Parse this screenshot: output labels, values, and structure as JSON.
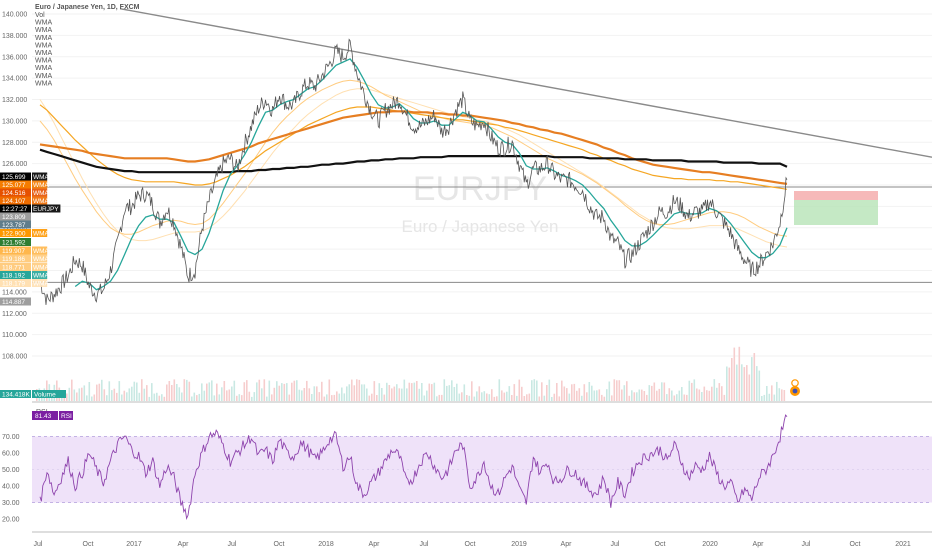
{
  "chart_data": {
    "type": "line",
    "title": "Euro / Japanese Yen, 1D, FXCM",
    "watermark_symbol": "EURJPY",
    "watermark_name": "Euro / Japanese Yen",
    "indicator_labels": [
      "Vol",
      "WMA",
      "WMA",
      "WMA",
      "WMA",
      "WMA",
      "WMA",
      "WMA",
      "WMA",
      "WMA"
    ],
    "y_ticks": [
      "140.000",
      "138.000",
      "136.000",
      "134.000",
      "132.000",
      "130.000",
      "128.000",
      "126.000",
      "124.000",
      "122.000",
      "120.000",
      "118.000",
      "116.000",
      "114.000",
      "112.000",
      "110.000",
      "108.000"
    ],
    "x_ticks": [
      "Jul",
      "Oct",
      "2017",
      "Apr",
      "Jul",
      "Oct",
      "2018",
      "Apr",
      "Jul",
      "Oct",
      "2019",
      "Apr",
      "Jul",
      "Oct",
      "2020",
      "Apr",
      "Jul",
      "Oct",
      "2021"
    ],
    "price_tags": [
      {
        "value": "125.699",
        "label": "WMA",
        "color": "#000000"
      },
      {
        "value": "125.077",
        "label": "WMA",
        "color": "#f57c00"
      },
      {
        "value": "124.516",
        "label": "WMA",
        "color": "#e65100"
      },
      {
        "value": "124.107",
        "label": "WMA",
        "color": "#ef6c00"
      },
      {
        "value": "12:27:27",
        "label": "EURJPY",
        "color": "#000000"
      },
      {
        "value": "123.809",
        "label": "",
        "color": "#9e9e9e"
      },
      {
        "value": "123.787",
        "label": "",
        "color": "#607d8b"
      },
      {
        "value": "122.900",
        "label": "WMA",
        "color": "#ff9800"
      },
      {
        "value": "121.592",
        "label": "",
        "color": "#2e7d32"
      },
      {
        "value": "119.907",
        "label": "WMA",
        "color": "#ffb74d"
      },
      {
        "value": "119.186",
        "label": "WMA",
        "color": "#ffcc80"
      },
      {
        "value": "118.771",
        "label": "WMA",
        "color": "#ffcc80"
      },
      {
        "value": "118.192",
        "label": "WMA",
        "color": "#26a69a"
      },
      {
        "value": "118.179",
        "label": "WMA",
        "color": "#ffe0b2"
      },
      {
        "value": "114.887",
        "label": "",
        "color": "#9e9e9e"
      }
    ],
    "volume_tag": {
      "value": "134.418K",
      "label": "Volume",
      "color": "#26a69a"
    },
    "rsi": {
      "value": "81.43",
      "label": "RSI",
      "y_ticks": [
        "70.00",
        "60.00",
        "50.00",
        "40.00",
        "30.00",
        "20.00"
      ],
      "band": [
        30,
        70
      ]
    },
    "levels": {
      "horizontal_1": 123.809,
      "horizontal_2": 114.887
    },
    "trendline": {
      "start": 140.5,
      "end": 126.6
    },
    "series": [
      {
        "type": "price",
        "values": [
          115.0,
          113.2,
          113.8,
          114.6,
          115.5,
          117.0,
          116.5,
          114.5,
          113.8,
          114.2,
          116.0,
          118.5,
          121.8,
          122.0,
          123.0,
          123.2,
          122.2,
          120.5,
          121.8,
          120.5,
          118.2,
          115.5,
          116.0,
          120.0,
          122.5,
          124.5,
          126.0,
          126.5,
          125.5,
          127.8,
          129.5,
          131.2,
          132.0,
          131.0,
          132.5,
          131.5,
          131.5,
          132.8,
          133.5,
          133.2,
          134.2,
          135.2,
          136.5,
          136.0,
          137.0,
          134.5,
          132.5,
          131.0,
          130.0,
          131.0,
          131.5,
          132.0,
          130.5,
          129.5,
          129.5,
          130.0,
          130.5,
          129.0,
          129.5,
          131.0,
          132.0,
          130.0,
          129.5,
          130.0,
          128.5,
          127.5,
          127.5,
          128.0,
          126.0,
          124.0,
          125.5,
          125.5,
          126.0,
          125.0,
          124.5,
          124.5,
          124.0,
          123.5,
          122.0,
          121.0,
          121.0,
          119.0,
          118.5,
          117.0,
          117.5,
          118.5,
          119.5,
          120.5,
          121.5,
          121.5,
          122.5,
          122.0,
          121.0,
          121.5,
          121.5,
          122.5,
          121.5,
          120.5,
          119.5,
          118.0,
          117.0,
          116.0,
          116.5,
          117.5,
          118.5,
          120.5,
          124.5
        ]
      },
      {
        "type": "wma_teal",
        "values": [
          null,
          null,
          null,
          null,
          null,
          114.5,
          115.0,
          114.8,
          114.2,
          114.5,
          115.0,
          116.0,
          117.5,
          119.0,
          120.2,
          121.0,
          121.2,
          120.8,
          120.8,
          120.5,
          119.2,
          117.8,
          117.5,
          118.0,
          119.5,
          121.5,
          123.5,
          125.0,
          125.8,
          126.8,
          128.0,
          129.5,
          130.8,
          131.0,
          131.5,
          131.8,
          132.0,
          132.5,
          133.0,
          133.2,
          133.8,
          134.5,
          135.2,
          135.5,
          135.8,
          135.0,
          133.8,
          132.5,
          131.5,
          131.2,
          131.3,
          131.6,
          131.0,
          130.2,
          129.8,
          129.8,
          130.0,
          129.6,
          129.6,
          130.2,
          130.8,
          130.5,
          130.0,
          129.9,
          129.3,
          128.5,
          128.0,
          127.8,
          127.0,
          125.8,
          125.5,
          125.5,
          125.6,
          125.3,
          124.9,
          124.7,
          124.4,
          124.0,
          123.3,
          122.5,
          121.8,
          120.7,
          119.8,
          118.8,
          118.3,
          118.3,
          118.7,
          119.3,
          120.0,
          120.6,
          121.3,
          121.5,
          121.3,
          121.3,
          121.4,
          121.8,
          121.6,
          121.1,
          120.4,
          119.5,
          118.6,
          117.7,
          117.2,
          117.2,
          117.6,
          118.4,
          120.0
        ]
      },
      {
        "type": "wma_orange_long",
        "values": [
          127.8,
          127.7,
          127.6,
          127.5,
          127.4,
          127.3,
          127.2,
          127.0,
          126.9,
          126.8,
          126.7,
          126.6,
          126.5,
          126.5,
          126.5,
          126.5,
          126.5,
          126.5,
          126.5,
          126.4,
          126.3,
          126.2,
          126.2,
          126.3,
          126.4,
          126.6,
          126.8,
          127.0,
          127.2,
          127.4,
          127.6,
          127.9,
          128.1,
          128.3,
          128.5,
          128.7,
          128.9,
          129.1,
          129.3,
          129.5,
          129.7,
          129.9,
          130.1,
          130.3,
          130.4,
          130.5,
          130.6,
          130.7,
          130.8,
          130.8,
          130.9,
          130.9,
          130.9,
          130.8,
          130.8,
          130.8,
          130.7,
          130.7,
          130.6,
          130.6,
          130.5,
          130.5,
          130.4,
          130.3,
          130.2,
          130.1,
          130.0,
          129.8,
          129.7,
          129.5,
          129.4,
          129.2,
          129.1,
          128.9,
          128.8,
          128.6,
          128.4,
          128.2,
          128.0,
          127.8,
          127.5,
          127.3,
          127.0,
          126.8,
          126.5,
          126.3,
          126.1,
          125.9,
          125.8,
          125.7,
          125.6,
          125.5,
          125.4,
          125.3,
          125.2,
          125.2,
          125.1,
          125.0,
          124.9,
          124.8,
          124.7,
          124.6,
          124.5,
          124.4,
          124.3,
          124.2,
          124.1
        ]
      },
      {
        "type": "wma_black",
        "values": [
          127.3,
          127.1,
          126.9,
          126.7,
          126.5,
          126.3,
          126.1,
          125.9,
          125.7,
          125.6,
          125.5,
          125.4,
          125.3,
          125.3,
          125.2,
          125.2,
          125.2,
          125.2,
          125.2,
          125.2,
          125.2,
          125.2,
          125.2,
          125.2,
          125.2,
          125.2,
          125.2,
          125.2,
          125.3,
          125.3,
          125.3,
          125.4,
          125.4,
          125.5,
          125.5,
          125.6,
          125.6,
          125.7,
          125.7,
          125.8,
          125.9,
          125.9,
          126.0,
          126.0,
          126.1,
          126.2,
          126.2,
          126.3,
          126.3,
          126.4,
          126.4,
          126.5,
          126.5,
          126.5,
          126.6,
          126.6,
          126.6,
          126.6,
          126.7,
          126.7,
          126.7,
          126.7,
          126.7,
          126.7,
          126.7,
          126.7,
          126.7,
          126.7,
          126.7,
          126.7,
          126.7,
          126.7,
          126.7,
          126.6,
          126.6,
          126.6,
          126.6,
          126.6,
          126.5,
          126.5,
          126.5,
          126.5,
          126.5,
          126.4,
          126.4,
          126.4,
          126.4,
          126.3,
          126.3,
          126.3,
          126.3,
          126.3,
          126.2,
          126.2,
          126.2,
          126.2,
          126.2,
          126.1,
          126.1,
          126.1,
          126.1,
          126.1,
          126.0,
          126.0,
          126.0,
          126.0,
          125.7
        ]
      },
      {
        "type": "wma_orange_mid",
        "values": [
          131.5,
          131.0,
          130.3,
          129.6,
          128.9,
          128.2,
          127.6,
          127.0,
          126.4,
          125.9,
          125.4,
          125.0,
          124.7,
          124.5,
          124.4,
          124.3,
          124.3,
          124.3,
          124.3,
          124.3,
          124.2,
          124.1,
          124.0,
          124.0,
          124.1,
          124.3,
          124.6,
          124.9,
          125.3,
          125.7,
          126.2,
          126.7,
          127.2,
          127.6,
          128.0,
          128.4,
          128.8,
          129.2,
          129.6,
          129.9,
          130.2,
          130.5,
          130.8,
          131.0,
          131.2,
          131.3,
          131.3,
          131.3,
          131.2,
          131.1,
          131.0,
          130.9,
          130.8,
          130.7,
          130.6,
          130.5,
          130.4,
          130.3,
          130.2,
          130.1,
          130.1,
          130.0,
          129.9,
          129.8,
          129.7,
          129.6,
          129.4,
          129.3,
          129.1,
          128.9,
          128.7,
          128.5,
          128.3,
          128.1,
          127.9,
          127.7,
          127.5,
          127.3,
          127.0,
          126.8,
          126.5,
          126.3,
          126.0,
          125.8,
          125.5,
          125.3,
          125.1,
          124.9,
          124.8,
          124.7,
          124.6,
          124.6,
          124.5,
          124.5,
          124.5,
          124.5,
          124.4,
          124.4,
          124.3,
          124.3,
          124.2,
          124.1,
          124.0,
          123.9,
          123.8,
          123.7,
          123.6
        ]
      },
      {
        "type": "wma_light1",
        "values": [
          130.0,
          129.2,
          128.2,
          127.0,
          125.8,
          124.6,
          123.5,
          122.5,
          121.5,
          120.7,
          120.0,
          119.6,
          119.4,
          119.4,
          119.6,
          119.9,
          120.2,
          120.4,
          120.6,
          120.7,
          120.6,
          120.4,
          120.3,
          120.4,
          120.8,
          121.5,
          122.3,
          123.2,
          124.1,
          125.0,
          126.0,
          127.0,
          128.0,
          128.9,
          129.7,
          130.4,
          131.0,
          131.6,
          132.1,
          132.5,
          132.9,
          133.2,
          133.5,
          133.7,
          133.8,
          133.7,
          133.5,
          133.2,
          132.8,
          132.4,
          132.1,
          131.8,
          131.5,
          131.2,
          130.9,
          130.7,
          130.5,
          130.3,
          130.1,
          130.0,
          129.9,
          129.8,
          129.7,
          129.6,
          129.4,
          129.1,
          128.8,
          128.5,
          128.1,
          127.7,
          127.3,
          126.9,
          126.5,
          126.2,
          125.9,
          125.6,
          125.3,
          125.0,
          124.6,
          124.2,
          123.7,
          123.2,
          122.7,
          122.1,
          121.6,
          121.1,
          120.7,
          120.4,
          120.3,
          120.3,
          120.4,
          120.6,
          120.8,
          121.0,
          121.2,
          121.4,
          121.5,
          121.5,
          121.4,
          121.2,
          120.9,
          120.5,
          120.1,
          119.8,
          119.5,
          119.3,
          119.2
        ]
      },
      {
        "type": "wma_light2",
        "values": [
          132.0,
          131.0,
          129.8,
          128.5,
          127.2,
          125.9,
          124.6,
          123.4,
          122.3,
          121.3,
          120.4,
          119.7,
          119.2,
          118.9,
          118.8,
          118.8,
          118.9,
          119.1,
          119.3,
          119.5,
          119.6,
          119.6,
          119.6,
          119.7,
          120.0,
          120.5,
          121.1,
          121.8,
          122.6,
          123.4,
          124.3,
          125.2,
          126.1,
          127.0,
          127.8,
          128.6,
          129.3,
          130.0,
          130.6,
          131.1,
          131.6,
          132.0,
          132.4,
          132.7,
          132.9,
          133.0,
          133.0,
          132.9,
          132.7,
          132.5,
          132.3,
          132.1,
          131.9,
          131.7,
          131.5,
          131.3,
          131.1,
          130.9,
          130.7,
          130.6,
          130.4,
          130.3,
          130.1,
          130.0,
          129.8,
          129.6,
          129.3,
          129.0,
          128.7,
          128.3,
          127.9,
          127.5,
          127.1,
          126.7,
          126.3,
          125.9,
          125.5,
          125.1,
          124.7,
          124.3,
          123.8,
          123.3,
          122.8,
          122.3,
          121.8,
          121.3,
          120.9,
          120.5,
          120.2,
          120.0,
          119.9,
          119.9,
          119.9,
          120.0,
          120.1,
          120.2,
          120.2,
          120.2,
          120.1,
          119.9,
          119.6,
          119.3,
          119.0,
          118.7,
          118.5,
          118.3,
          118.2
        ]
      },
      {
        "type": "rsi",
        "values": [
          30,
          50,
          35,
          45,
          55,
          40,
          48,
          60,
          50,
          42,
          55,
          65,
          70,
          62,
          58,
          48,
          55,
          40,
          52,
          45,
          30,
          22,
          48,
          60,
          70,
          72,
          65,
          55,
          60,
          65,
          70,
          58,
          62,
          55,
          68,
          60,
          58,
          66,
          62,
          56,
          60,
          68,
          70,
          52,
          58,
          40,
          35,
          42,
          48,
          55,
          62,
          58,
          42,
          45,
          55,
          60,
          52,
          45,
          50,
          62,
          65,
          40,
          45,
          55,
          40,
          35,
          45,
          52,
          38,
          30,
          58,
          48,
          55,
          42,
          45,
          50,
          48,
          42,
          38,
          35,
          45,
          30,
          42,
          35,
          48,
          55,
          58,
          60,
          62,
          55,
          65,
          55,
          45,
          52,
          50,
          58,
          48,
          40,
          42,
          30,
          38,
          32,
          45,
          50,
          58,
          70,
          82
        ]
      }
    ]
  }
}
